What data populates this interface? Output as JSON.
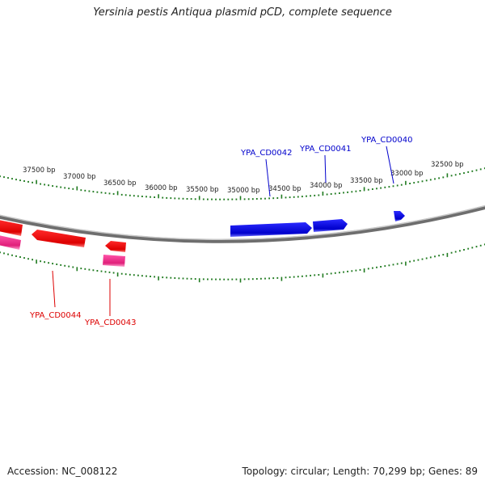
{
  "title": "Yersinia pestis Antiqua plasmid pCD, complete sequence",
  "accession": "Accession: NC_008122",
  "topology": "Topology: circular; Length: 70,299 bp; Genes: 89",
  "colors": {
    "backbone": "#8c8c8c",
    "ticks": "#1f7a1f",
    "forward_gene": "#0000dd",
    "reverse_gene": "#ee0000",
    "reverse_gene_alt": "#ee3399",
    "forward_label": "#0000cc",
    "reverse_label": "#dd0000"
  },
  "tick_labels": [
    "37500 bp",
    "37000 bp",
    "36500 bp",
    "36000 bp",
    "35500 bp",
    "35000 bp",
    "34500 bp",
    "34000 bp",
    "33500 bp",
    "33000 bp",
    "32500 bp"
  ],
  "gene_labels": {
    "forward": [
      "YPA_CD0042",
      "YPA_CD0041",
      "YPA_CD0040"
    ],
    "reverse": [
      "YPA_CD0044",
      "YPA_CD0043"
    ]
  }
}
